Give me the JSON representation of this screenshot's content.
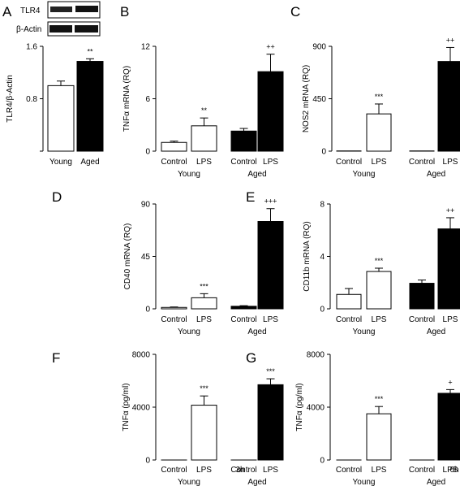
{
  "blot": {
    "tlr4_label": "TLR4",
    "actin_label": "β-Actin"
  },
  "chart_data": [
    {
      "panel": "A",
      "type": "bar",
      "ylabel": "TLR4/β-Actin",
      "ylim": [
        0,
        1.6
      ],
      "yticks": [
        "0.8",
        "1.6"
      ],
      "categories": [
        "Young",
        "Aged"
      ],
      "values": [
        1.0,
        1.37
      ],
      "errors": [
        0.07,
        0.04
      ],
      "fills": [
        "white",
        "black"
      ],
      "significance": [
        "",
        "**"
      ]
    },
    {
      "panel": "B",
      "type": "bar",
      "ylabel": "TNFα mRNA (RQ)",
      "ylim": [
        0,
        12
      ],
      "yticks": [
        "0",
        "6",
        "12"
      ],
      "categories": [
        "Control",
        "LPS",
        "Control",
        "LPS"
      ],
      "groups": [
        "Young",
        "Aged"
      ],
      "values": [
        1.0,
        2.9,
        2.3,
        9.1
      ],
      "errors": [
        0.15,
        0.9,
        0.3,
        2.0
      ],
      "fills": [
        "white",
        "white",
        "black",
        "black"
      ],
      "significance": [
        "",
        "**",
        "",
        "++"
      ]
    },
    {
      "panel": "C",
      "type": "bar",
      "ylabel": "NOS2 mRNA (RQ)",
      "ylim": [
        0,
        900
      ],
      "yticks": [
        "0",
        "450",
        "900"
      ],
      "categories": [
        "Control",
        "LPS",
        "Control",
        "LPS"
      ],
      "groups": [
        "Young",
        "Aged"
      ],
      "values": [
        2,
        320,
        2,
        770
      ],
      "errors": [
        0,
        85,
        0,
        120
      ],
      "fills": [
        "white",
        "white",
        "black",
        "black"
      ],
      "significance": [
        "",
        "***",
        "",
        "++"
      ]
    },
    {
      "panel": "D",
      "type": "bar",
      "ylabel": "CD40 mRNA (RQ)",
      "ylim": [
        0,
        90
      ],
      "yticks": [
        "0",
        "45",
        "90"
      ],
      "categories": [
        "Control",
        "LPS",
        "Control",
        "LPS"
      ],
      "groups": [
        "Young",
        "Aged"
      ],
      "values": [
        1.2,
        9.5,
        2.2,
        75
      ],
      "errors": [
        0.4,
        3.5,
        0.5,
        11
      ],
      "fills": [
        "white",
        "white",
        "black",
        "black"
      ],
      "significance": [
        "",
        "***",
        "",
        "+++"
      ]
    },
    {
      "panel": "E",
      "type": "bar",
      "ylabel": "CD11b mRNA (RQ)",
      "ylim": [
        0,
        8
      ],
      "yticks": [
        "0",
        "4",
        "8"
      ],
      "categories": [
        "Control",
        "LPS",
        "Control",
        "LPS"
      ],
      "groups": [
        "Young",
        "Aged"
      ],
      "values": [
        1.1,
        2.85,
        1.95,
        6.1
      ],
      "errors": [
        0.45,
        0.25,
        0.25,
        0.85
      ],
      "fills": [
        "white",
        "white",
        "black",
        "black"
      ],
      "significance": [
        "",
        "***",
        "",
        "++"
      ]
    },
    {
      "panel": "F",
      "type": "bar",
      "ylabel": "TNFα (pg/ml)",
      "ylim": [
        0,
        8000
      ],
      "yticks": [
        "0",
        "4000",
        "8000"
      ],
      "categories": [
        "Control",
        "LPS",
        "Control",
        "LPS"
      ],
      "groups": [
        "Young",
        "Aged"
      ],
      "values": [
        0,
        4150,
        0,
        5700
      ],
      "errors": [
        0,
        700,
        0,
        450
      ],
      "fills": [
        "white",
        "white",
        "black",
        "black"
      ],
      "significance": [
        "",
        "***",
        "",
        "***"
      ],
      "time": "3h"
    },
    {
      "panel": "G",
      "type": "bar",
      "ylabel": "TNFα (pg/ml)",
      "ylim": [
        0,
        8000
      ],
      "yticks": [
        "0",
        "4000",
        "8000"
      ],
      "categories": [
        "Control",
        "LPS",
        "Control",
        "LPS"
      ],
      "groups": [
        "Young",
        "Aged"
      ],
      "values": [
        0,
        3500,
        0,
        5050
      ],
      "errors": [
        0,
        550,
        0,
        280
      ],
      "fills": [
        "white",
        "white",
        "black",
        "black"
      ],
      "significance": [
        "",
        "***",
        "",
        "+"
      ],
      "time": "6h"
    }
  ]
}
